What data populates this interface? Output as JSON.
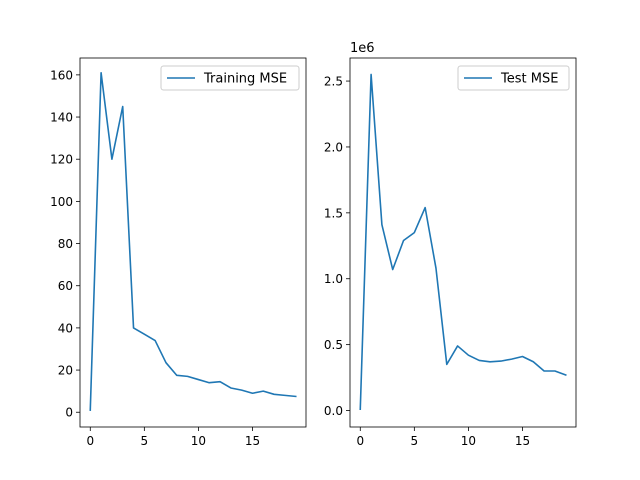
{
  "colors": {
    "series": "#1f77b4",
    "axes": "#000000",
    "legend_border": "#cccccc",
    "background": "#ffffff"
  },
  "chart_data": [
    {
      "type": "line",
      "title": "",
      "xlabel": "",
      "ylabel": "",
      "xlim": [
        -0.95,
        19.95
      ],
      "ylim": [
        -7.0,
        168.0
      ],
      "xticks": [
        0,
        5,
        10,
        15
      ],
      "yticks": [
        0,
        20,
        40,
        60,
        80,
        100,
        120,
        140,
        160
      ],
      "legend": "upper right",
      "series": [
        {
          "name": "Training MSE",
          "x": [
            0,
            1,
            2,
            3,
            4,
            5,
            6,
            7,
            8,
            9,
            10,
            11,
            12,
            13,
            14,
            15,
            16,
            17,
            18,
            19
          ],
          "values": [
            1,
            161,
            120,
            145,
            40,
            37,
            34,
            23.5,
            17.5,
            17,
            15.5,
            14,
            14.5,
            11.5,
            10.5,
            9,
            10,
            8.5,
            8,
            7.5
          ]
        }
      ]
    },
    {
      "type": "line",
      "title": "",
      "xlabel": "",
      "ylabel": "",
      "offset_text": "1e6",
      "xlim": [
        -0.95,
        19.95
      ],
      "ylim": [
        -0.125,
        2.675
      ],
      "xticks": [
        0,
        5,
        10,
        15
      ],
      "yticks": [
        0.0,
        0.5,
        1.0,
        1.5,
        2.0,
        2.5
      ],
      "ytick_labels": [
        "0.0",
        "0.5",
        "1.0",
        "1.5",
        "2.0",
        "2.5"
      ],
      "legend": "upper right",
      "series": [
        {
          "name": "Test MSE",
          "x": [
            0,
            1,
            2,
            3,
            4,
            5,
            6,
            7,
            8,
            9,
            10,
            11,
            12,
            13,
            14,
            15,
            16,
            17,
            18,
            19
          ],
          "values": [
            0.01,
            2.55,
            1.41,
            1.07,
            1.29,
            1.35,
            1.54,
            1.08,
            0.35,
            0.49,
            0.42,
            0.38,
            0.37,
            0.375,
            0.39,
            0.41,
            0.37,
            0.3,
            0.3,
            0.27
          ]
        }
      ]
    }
  ]
}
